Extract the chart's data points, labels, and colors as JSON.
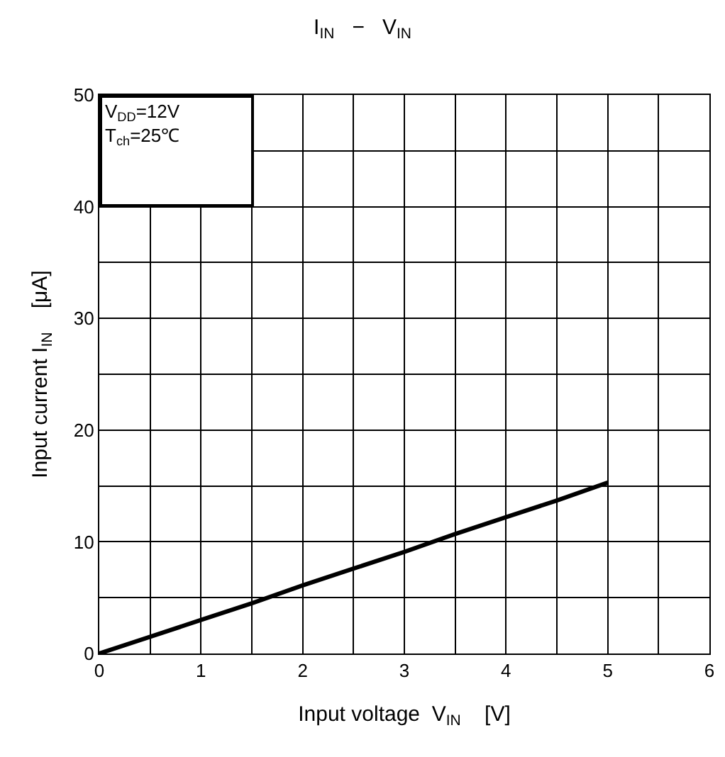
{
  "chart_data": {
    "type": "line",
    "title": "I$_{IN}$   −   V$_{IN}$",
    "xlabel": "Input voltage  V$_{IN}$    [V]",
    "ylabel": "Input current I$_{IN}$    [μA]",
    "x": [
      0,
      0.5,
      1,
      1.5,
      2,
      2.5,
      3,
      3.5,
      4,
      4.5,
      5
    ],
    "series": [
      {
        "color": "#000000",
        "values": [
          0,
          1.5,
          3,
          4.5,
          6.1,
          7.6,
          9.1,
          10.7,
          12.2,
          13.7,
          15.3
        ]
      }
    ],
    "xlim": [
      0,
      6
    ],
    "xticks": [
      0,
      {
        "value": 0.5,
        "label": null
      },
      1,
      {
        "value": 1.5,
        "label": null
      },
      2,
      {
        "value": 2.5,
        "label": null
      },
      3,
      {
        "value": 3.5,
        "label": null
      },
      4,
      {
        "value": 4.5,
        "label": null
      },
      5,
      {
        "value": 5.5,
        "label": null
      },
      6
    ],
    "ylim": [
      0,
      50
    ],
    "yticks": [
      0,
      {
        "value": 5,
        "label": null
      },
      10,
      {
        "value": 15,
        "label": null
      },
      20,
      {
        "value": 25,
        "label": null
      },
      30,
      {
        "value": 35,
        "label": null
      },
      40,
      {
        "value": 45,
        "label": null
      },
      50
    ],
    "grid": true,
    "marker": "none",
    "line_style": "solid",
    "annotations": [
      "V$_{DD}$=12V",
      "T$_{ch}$=25℃"
    ]
  }
}
